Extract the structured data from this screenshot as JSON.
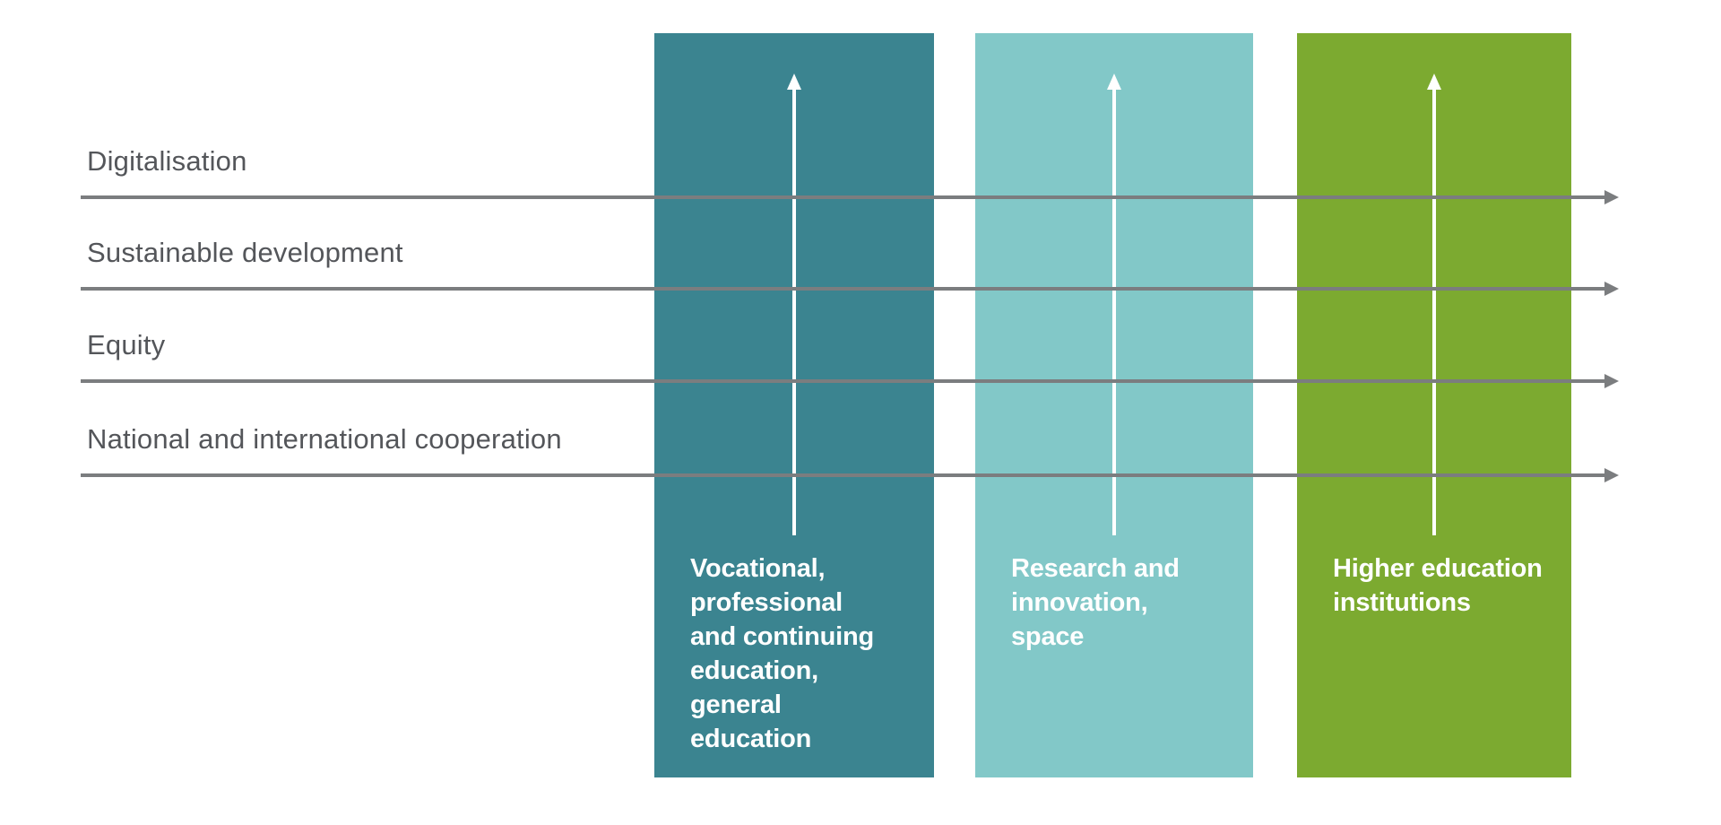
{
  "colors": {
    "background": "#ffffff",
    "pillar_education": "#3b8490",
    "pillar_research": "#82c8c8",
    "pillar_higher_ed": "#7caa30",
    "line_gray": "#7b7d7f",
    "label_gray": "#54565a",
    "arrow_white": "#ffffff"
  },
  "themes": [
    {
      "label": "Digitalisation"
    },
    {
      "label": "Sustainable development"
    },
    {
      "label": "Equity"
    },
    {
      "label": "National and international cooperation"
    }
  ],
  "pillars": [
    {
      "label": "Vocational,\nprofessional\nand continuing\neducation,\ngeneral\neducation"
    },
    {
      "label": "Research and\ninnovation,\nspace"
    },
    {
      "label": "Higher education\ninstitutions"
    }
  ]
}
